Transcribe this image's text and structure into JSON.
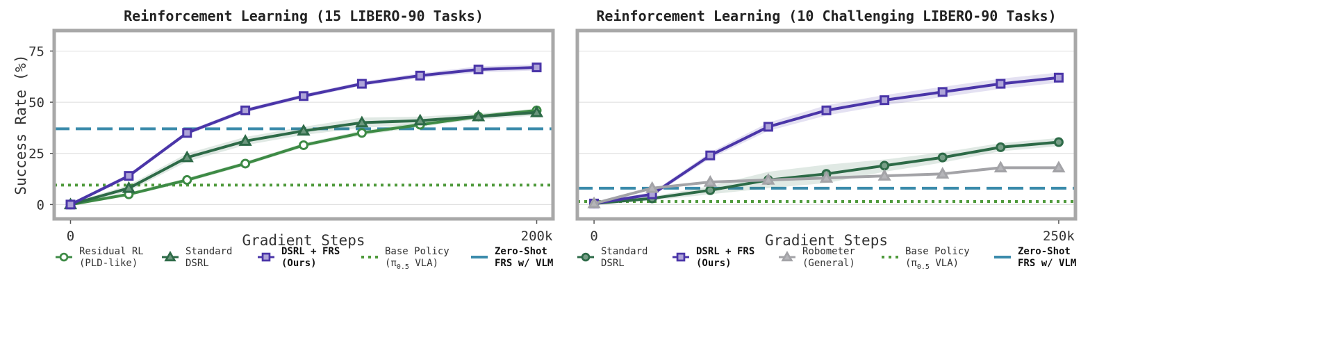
{
  "chart_data": [
    {
      "type": "line",
      "title": "Reinforcement Learning (15 LIBERO-90 Tasks)",
      "xlabel": "Gradient Steps",
      "ylabel": "Success Rate (%)",
      "x_ticks": [
        {
          "value": 0,
          "label": "0"
        },
        {
          "value": 200000,
          "label": "200k"
        }
      ],
      "y_ticks": [
        {
          "value": 0,
          "label": "0"
        },
        {
          "value": 25,
          "label": "25"
        },
        {
          "value": 50,
          "label": "50"
        },
        {
          "value": 75,
          "label": "75"
        }
      ],
      "xlim": [
        -7000,
        207000
      ],
      "ylim": [
        -7,
        85
      ],
      "grid": "horizontal",
      "legend": "bottom",
      "series": [
        {
          "name": "Residual RL (PLD-like)",
          "name_lines": [
            "Residual RL",
            "(PLD-like)"
          ],
          "color": "#3d8a45",
          "marker": "circle-open",
          "x": [
            0,
            25000,
            50000,
            75000,
            100000,
            125000,
            150000,
            175000,
            200000
          ],
          "y": [
            0,
            5,
            12,
            20,
            29,
            35,
            39,
            43,
            46
          ],
          "band": [
            0.8,
            0.8,
            1,
            1,
            1,
            1.2,
            1.2,
            1,
            1
          ]
        },
        {
          "name": "Standard DSRL",
          "name_lines": [
            "Standard",
            "DSRL"
          ],
          "color": "#2d6a47",
          "marker": "triangle",
          "x": [
            0,
            25000,
            50000,
            75000,
            100000,
            125000,
            150000,
            175000,
            200000
          ],
          "y": [
            0,
            8,
            23,
            31,
            36,
            40,
            41,
            43,
            45
          ],
          "band": [
            0.8,
            1.5,
            2,
            2,
            2,
            2.5,
            2,
            1.5,
            1.5
          ]
        },
        {
          "name": "DSRL + FRS (Ours)",
          "name_lines": [
            "DSRL + FRS",
            "(Ours)"
          ],
          "bold": true,
          "color": "#4a35a8",
          "marker": "square",
          "x": [
            0,
            25000,
            50000,
            75000,
            100000,
            125000,
            150000,
            175000,
            200000
          ],
          "y": [
            0,
            14,
            35,
            46,
            53,
            59,
            63,
            66,
            67
          ],
          "band": [
            0.8,
            1,
            1,
            1,
            1,
            1,
            1.2,
            1.5,
            1.5
          ]
        }
      ],
      "reference_lines": [
        {
          "name": "Base Policy (π0.5 VLA)",
          "name_lines": [
            "Base Policy",
            "(π",
            "0.5",
            " VLA)"
          ],
          "color": "#4f9a3c",
          "style": "dotted",
          "y": 9.5
        },
        {
          "name": "Zero-Shot FRS w/ VLM",
          "name_lines": [
            "Zero-Shot",
            "FRS w/ VLM"
          ],
          "bold": true,
          "color": "#3b8bab",
          "style": "dashed",
          "y": 37
        }
      ],
      "legend_order": [
        "s0",
        "s1",
        "s2",
        "r0",
        "r1"
      ]
    },
    {
      "type": "line",
      "title": "Reinforcement Learning (10 Challenging LIBERO-90 Tasks)",
      "xlabel": "Gradient Steps",
      "ylabel": "",
      "x_ticks": [
        {
          "value": 0,
          "label": "0"
        },
        {
          "value": 250000,
          "label": "250k"
        }
      ],
      "y_ticks": [
        {
          "value": 0,
          "label": ""
        },
        {
          "value": 25,
          "label": ""
        },
        {
          "value": 50,
          "label": ""
        },
        {
          "value": 75,
          "label": ""
        }
      ],
      "xlim": [
        -9000,
        259000
      ],
      "ylim": [
        -7,
        85
      ],
      "grid": "horizontal",
      "legend": "bottom",
      "series": [
        {
          "name": "Standard DSRL",
          "name_lines": [
            "Standard",
            "DSRL"
          ],
          "color": "#2d6a47",
          "marker": "circle-filled",
          "x": [
            0,
            31250,
            62500,
            93750,
            125000,
            156250,
            187500,
            218750,
            250000
          ],
          "y": [
            0.5,
            3,
            7,
            12,
            15,
            19,
            23,
            28,
            30.5
          ],
          "band": [
            0.8,
            1,
            2,
            4,
            4.5,
            3,
            2.5,
            2,
            2
          ]
        },
        {
          "name": "DSRL + FRS (Ours)",
          "name_lines": [
            "DSRL + FRS",
            "(Ours)"
          ],
          "bold": true,
          "color": "#4a35a8",
          "marker": "square",
          "x": [
            0,
            31250,
            62500,
            93750,
            125000,
            156250,
            187500,
            218750,
            250000
          ],
          "y": [
            0.5,
            5,
            24,
            38,
            46,
            51,
            55,
            59,
            62
          ],
          "band": [
            0.8,
            1,
            1.5,
            2,
            2.5,
            2.5,
            2.5,
            2.5,
            2.5
          ]
        },
        {
          "name": "Robometer (General)",
          "name_lines": [
            "Robometer",
            "(General)"
          ],
          "color": "#a3a3a7",
          "marker": "triangle-filled",
          "x": [
            0,
            31250,
            62500,
            93750,
            125000,
            156250,
            187500,
            218750,
            250000
          ],
          "y": [
            0.5,
            8,
            11,
            12,
            13,
            14,
            15,
            18,
            18
          ],
          "band": [
            0.5,
            0.5,
            0.5,
            0.5,
            0.5,
            0.5,
            0.5,
            0.5,
            0.5
          ]
        }
      ],
      "reference_lines": [
        {
          "name": "Base Policy (π0.5 VLA)",
          "name_lines": [
            "Base Policy",
            "(π",
            "0.5",
            " VLA)"
          ],
          "color": "#4f9a3c",
          "style": "dotted",
          "y": 1.5
        },
        {
          "name": "Zero-Shot FRS w/ VLM",
          "name_lines": [
            "Zero-Shot",
            "FRS w/ VLM"
          ],
          "bold": true,
          "color": "#3b8bab",
          "style": "dashed",
          "y": 8
        }
      ],
      "legend_order": [
        "s0",
        "s1",
        "s2",
        "r0",
        "r1"
      ]
    }
  ]
}
